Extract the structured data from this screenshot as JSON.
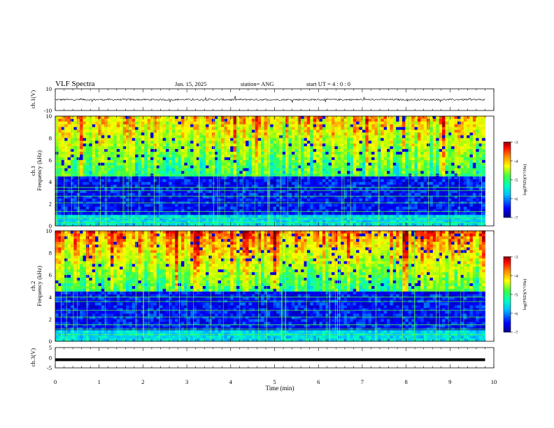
{
  "header": {
    "title": "VLF Spectra",
    "date": "Jan. 15, 2025",
    "station": "station= ANG",
    "start": "start  UT =  4 : 0  : 0"
  },
  "chart_data": [
    {
      "type": "line",
      "name": "ch1-waveform",
      "ylabel": "ch.1(V)",
      "ylim": [
        -10,
        10
      ],
      "yticks": [
        "10",
        "-10"
      ],
      "xlim": [
        0,
        10
      ],
      "baseline": 0,
      "noise_amplitude": 1.5,
      "x_end": 9.8
    },
    {
      "type": "heatmap",
      "name": "ch1-spectrogram",
      "ylabel": "ch.1\nFrequency (kHz)",
      "ylim": [
        0,
        10
      ],
      "yticks": [
        "0",
        "2",
        "4",
        "6",
        "8",
        "10"
      ],
      "xlim": [
        0,
        10
      ],
      "x_end": 9.8,
      "colorbar": {
        "label": "log(PSD)(V²/Hz)",
        "range": [
          -7,
          -3
        ],
        "ticks": [
          "-3",
          "-4",
          "-5",
          "-6",
          "-7"
        ]
      },
      "narrowband_lines_khz": [
        0.3,
        0.7,
        1.3,
        2.1,
        2.7,
        3.2,
        3.5,
        4.6
      ]
    },
    {
      "type": "heatmap",
      "name": "ch2-spectrogram",
      "ylabel": "ch.2\nFrequency (kHz)",
      "ylim": [
        0,
        10
      ],
      "yticks": [
        "0",
        "2",
        "4",
        "6",
        "8",
        "10"
      ],
      "xlim": [
        0,
        10
      ],
      "x_end": 9.8,
      "colorbar": {
        "label": "log(PSD)(V²/Hz)",
        "range": [
          -7,
          -3
        ],
        "ticks": [
          "-3",
          "-4",
          "-5",
          "-6",
          "-7"
        ]
      },
      "narrowband_lines_khz": [
        0.6,
        1.1,
        1.5,
        2.2,
        2.8,
        3.6,
        4.0
      ]
    },
    {
      "type": "line",
      "name": "ch3-waveform",
      "ylabel": "ch.3(V)",
      "ylim": [
        -5,
        5
      ],
      "yticks": [
        "5",
        "0",
        "-5"
      ],
      "xlim": [
        0,
        10
      ],
      "baseline": -1,
      "x_end": 9.8
    }
  ],
  "xaxis": {
    "label": "Time (min)",
    "ticks": [
      "0",
      "1",
      "2",
      "3",
      "4",
      "5",
      "6",
      "7",
      "8",
      "9",
      "10"
    ]
  },
  "colors": {
    "colormap": [
      "#00008b",
      "#0000ff",
      "#00c0ff",
      "#00ffc0",
      "#40ff40",
      "#c0ff00",
      "#ffff00",
      "#ff8000",
      "#ff0000",
      "#8b0000"
    ],
    "line": "#000000"
  }
}
